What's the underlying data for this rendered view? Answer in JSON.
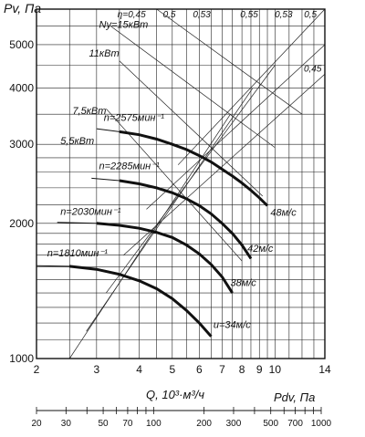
{
  "chart_data": {
    "type": "line",
    "title": "",
    "ylabel": "Pv, Па",
    "xlabel": "Q, 10³·м³/ч",
    "x_scale": "log",
    "y_scale": "log",
    "xlim": [
      2,
      14
    ],
    "ylim": [
      1000,
      6000
    ],
    "grid": true,
    "x_ticks": [
      2,
      3,
      4,
      5,
      6,
      7,
      8,
      9,
      10,
      14
    ],
    "y_ticks": [
      1000,
      2000,
      3000,
      4000,
      5000
    ],
    "series": [
      {
        "name": "n=1810мин⁻¹",
        "x": [
          2.0,
          2.5,
          3.0,
          3.5,
          4.0,
          4.5,
          5.0,
          5.5,
          6.0,
          6.5
        ],
        "y": [
          1610,
          1605,
          1580,
          1540,
          1490,
          1430,
          1360,
          1280,
          1200,
          1120
        ]
      },
      {
        "name": "n=2030мин⁻¹",
        "x": [
          2.3,
          3.0,
          3.5,
          4.0,
          4.5,
          5.0,
          5.5,
          6.0,
          6.5,
          7.0,
          7.5
        ],
        "y": [
          2010,
          2000,
          1980,
          1950,
          1910,
          1860,
          1790,
          1710,
          1620,
          1520,
          1400
        ]
      },
      {
        "name": "n=2285мин⁻¹",
        "x": [
          2.9,
          3.5,
          4.0,
          4.5,
          5.0,
          5.5,
          6.0,
          6.5,
          7.0,
          7.5,
          8.0,
          8.5
        ],
        "y": [
          2520,
          2490,
          2450,
          2400,
          2340,
          2270,
          2190,
          2100,
          2000,
          1900,
          1790,
          1670
        ]
      },
      {
        "name": "n=2575мин⁻¹",
        "x": [
          3.0,
          3.5,
          4.0,
          4.5,
          5.0,
          5.5,
          6.0,
          6.5,
          7.0,
          7.5,
          8.0,
          8.5,
          9.0,
          9.5
        ],
        "y": [
          3250,
          3200,
          3150,
          3080,
          3000,
          2920,
          2830,
          2740,
          2640,
          2550,
          2460,
          2370,
          2280,
          2190
        ]
      }
    ],
    "power_lines": [
      {
        "label": "Ny=15кВт"
      },
      {
        "label": "11кВт"
      },
      {
        "label": "7,5кВт"
      },
      {
        "label": "5,5кВт"
      }
    ],
    "efficiency_labels": [
      "η=0,45",
      "0,5",
      "0,53",
      "0,55",
      "0,53",
      "0,5",
      "0,45"
    ],
    "velocity_labels": [
      "48м/с",
      "42м/с",
      "38м/с",
      "u=34м/с"
    ],
    "pdv_axis": {
      "label": "Pdv, Па",
      "ticks": [
        20,
        30,
        50,
        70,
        100,
        200,
        300,
        500,
        700,
        1000
      ]
    }
  }
}
